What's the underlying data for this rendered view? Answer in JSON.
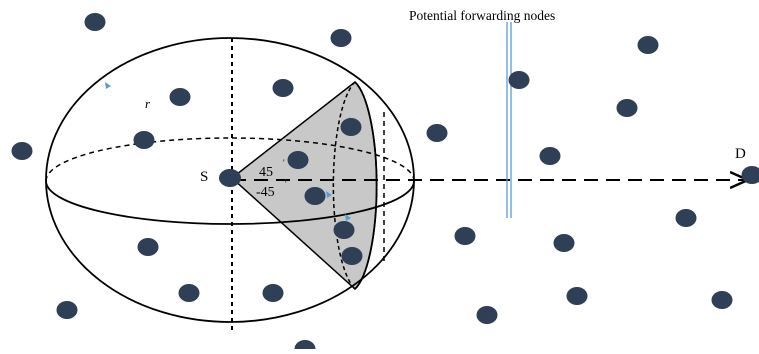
{
  "labels": {
    "potential_forwarding_nodes": "Potential forwarding nodes",
    "source": "S",
    "destination": "D",
    "radius": "r",
    "angle_upper": "45",
    "angle_lower": "-45"
  },
  "colors": {
    "node_fill": "#2f3f55",
    "cone_fill": "#c8c8c8",
    "stroke": "#000000",
    "marker_line": "#5b9bd5"
  }
}
